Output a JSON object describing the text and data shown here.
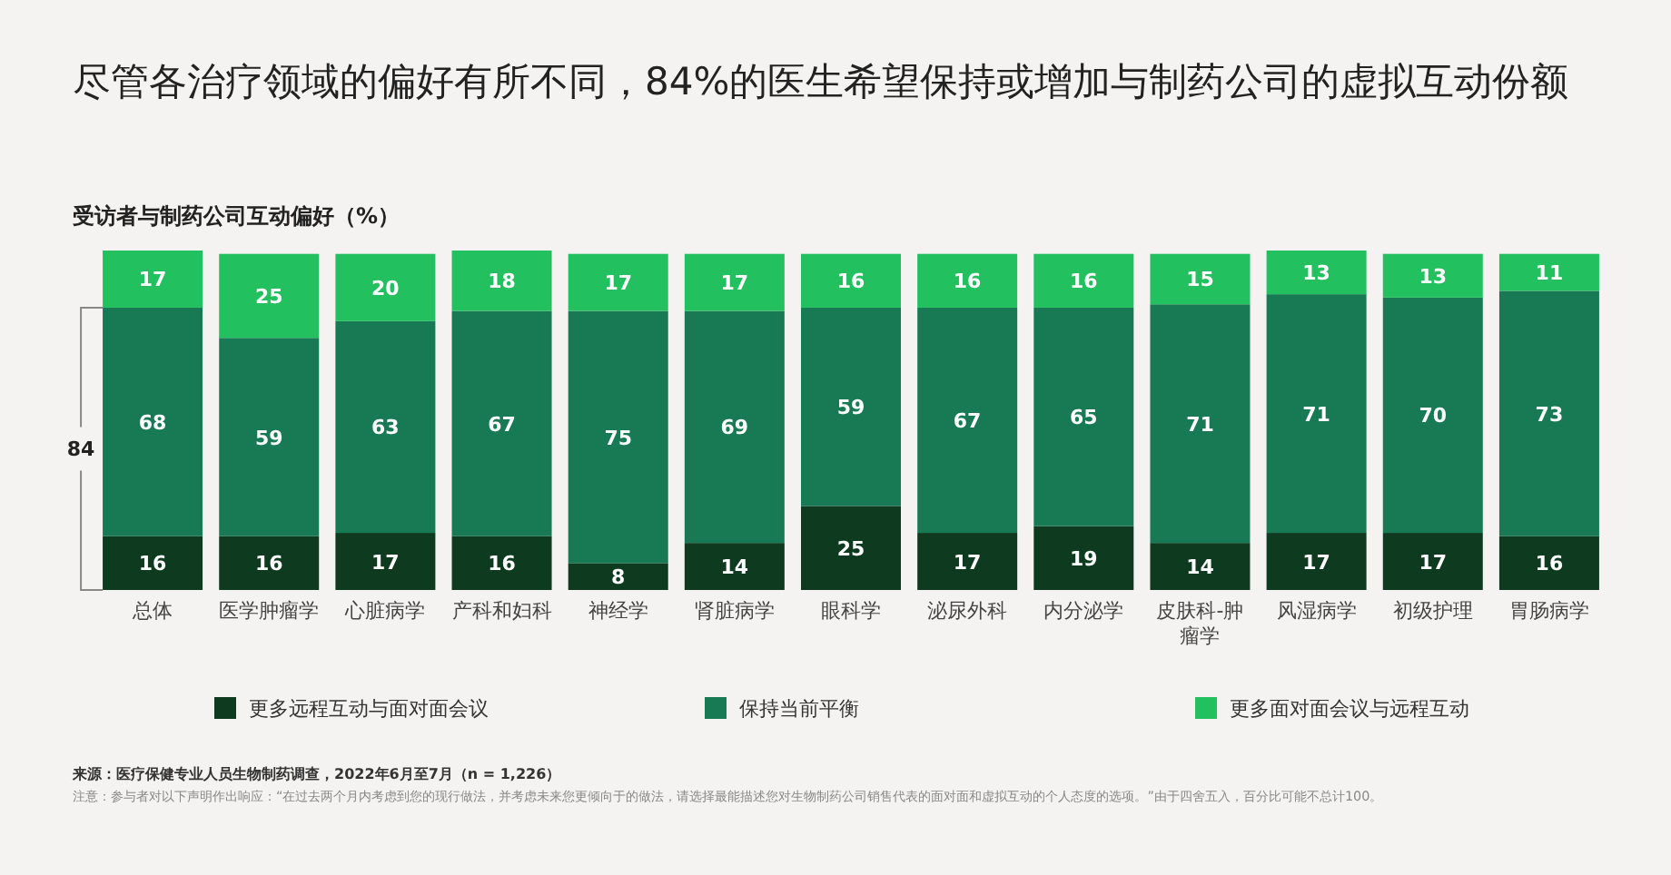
{
  "chart_data": {
    "type": "bar",
    "stacked": true,
    "data_labels": true,
    "legend": "bottom",
    "title": "尽管各治疗领域的偏好有所不同，84%的医生希望保持或增加与制药公司的虚拟互动份额",
    "subtitle": "受访者与制药公司互动偏好（%）",
    "categories": [
      "总体",
      "医学肿瘤学",
      "心脏病学",
      "产科和妇科",
      "神经学",
      "肾脏病学",
      "眼科学",
      "泌尿外科",
      "内分泌学",
      "皮肤科-肿瘤学",
      "风湿病学",
      "初级护理",
      "胃肠病学"
    ],
    "series": [
      {
        "name": "更多远程互动与面对面会议",
        "color": "#0e3b1f",
        "values": [
          16,
          16,
          17,
          16,
          8,
          14,
          25,
          17,
          19,
          14,
          17,
          17,
          16
        ]
      },
      {
        "name": "保持当前平衡",
        "color": "#187a55",
        "values": [
          68,
          59,
          63,
          67,
          75,
          69,
          59,
          67,
          65,
          71,
          71,
          70,
          73
        ]
      },
      {
        "name": "更多面对面会议与远程互动",
        "color": "#22c05e",
        "values": [
          17,
          25,
          20,
          18,
          17,
          17,
          16,
          16,
          16,
          15,
          13,
          13,
          11
        ]
      }
    ],
    "annotations": [
      "84",
      "来源：医疗保健专业人员生物制药调查，2022年6月至7月（n = 1,226）",
      "注意：参与者对以下声明作出响应：“在过去两个月内考虑到您的现行做法，并考虑未来您更倾向于的做法，请选择最能描述您对生物制药公司销售代表的面对面和虚拟互动的个人态度的选项。”由于四舍五入，百分比可能不总计100。"
    ]
  }
}
